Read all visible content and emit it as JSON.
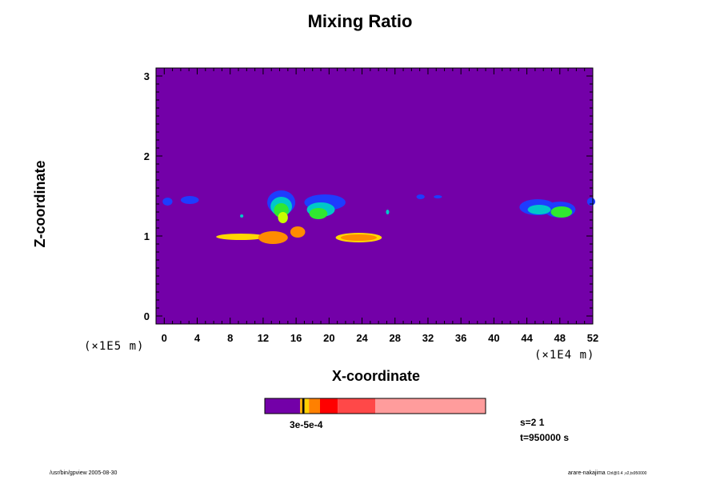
{
  "chart_data": {
    "type": "heatmap",
    "title": "Mixing Ratio",
    "xlabel": "X-coordinate",
    "ylabel": "Z-coordinate",
    "x_unit": "(×1E4 m)",
    "y_unit": "(×1E5 m)",
    "xlim": [
      -1,
      52
    ],
    "ylim": [
      -0.1,
      3.1
    ],
    "x_ticks": [
      "0",
      "4",
      "8",
      "12",
      "16",
      "20",
      "24",
      "28",
      "32",
      "36",
      "40",
      "44",
      "48",
      "52"
    ],
    "y_ticks": [
      "0",
      "1",
      "2",
      "3"
    ],
    "background_color": "#7300a8",
    "blobs": [
      {
        "x": 0.4,
        "z": 1.43,
        "rx": 0.6,
        "rz": 0.05,
        "color": "#1e3cff"
      },
      {
        "x": 3.1,
        "z": 1.45,
        "rx": 1.1,
        "rz": 0.05,
        "color": "#1e3cff"
      },
      {
        "x": 14.2,
        "z": 1.42,
        "rx": 1.7,
        "rz": 0.15,
        "color": "#1e3cff"
      },
      {
        "x": 14.2,
        "z": 1.37,
        "rx": 1.3,
        "rz": 0.12,
        "color": "#00c8c8"
      },
      {
        "x": 14.2,
        "z": 1.32,
        "rx": 0.9,
        "rz": 0.09,
        "color": "#30e830"
      },
      {
        "x": 14.4,
        "z": 1.23,
        "rx": 0.6,
        "rz": 0.07,
        "color": "#c8ff00"
      },
      {
        "x": 19.5,
        "z": 1.42,
        "rx": 2.5,
        "rz": 0.1,
        "color": "#1e3cff"
      },
      {
        "x": 19.0,
        "z": 1.33,
        "rx": 1.7,
        "rz": 0.09,
        "color": "#00c8c8"
      },
      {
        "x": 18.7,
        "z": 1.28,
        "rx": 1.1,
        "rz": 0.07,
        "color": "#30e830"
      },
      {
        "x": 9.3,
        "z": 0.99,
        "rx": 3.0,
        "rz": 0.04,
        "color": "#ffd700"
      },
      {
        "x": 13.2,
        "z": 0.98,
        "rx": 1.8,
        "rz": 0.08,
        "color": "#ff8c00"
      },
      {
        "x": 16.2,
        "z": 1.05,
        "rx": 0.9,
        "rz": 0.07,
        "color": "#ff8c00"
      },
      {
        "x": 23.6,
        "z": 0.98,
        "rx": 2.8,
        "rz": 0.06,
        "color": "#ffd700"
      },
      {
        "x": 23.6,
        "z": 0.98,
        "rx": 2.2,
        "rz": 0.04,
        "color": "#ff8c00"
      },
      {
        "x": 31.1,
        "z": 1.49,
        "rx": 0.5,
        "rz": 0.03,
        "color": "#1e3cff"
      },
      {
        "x": 33.2,
        "z": 1.49,
        "rx": 0.5,
        "rz": 0.02,
        "color": "#1e3cff"
      },
      {
        "x": 45.3,
        "z": 1.36,
        "rx": 2.2,
        "rz": 0.1,
        "color": "#1e3cff"
      },
      {
        "x": 48.0,
        "z": 1.33,
        "rx": 1.9,
        "rz": 0.1,
        "color": "#1e3cff"
      },
      {
        "x": 45.5,
        "z": 1.33,
        "rx": 1.4,
        "rz": 0.06,
        "color": "#00c8c8"
      },
      {
        "x": 48.2,
        "z": 1.3,
        "rx": 1.3,
        "rz": 0.07,
        "color": "#30e830"
      },
      {
        "x": 51.8,
        "z": 1.43,
        "rx": 0.5,
        "rz": 0.05,
        "color": "#1e3cff"
      },
      {
        "x": 9.4,
        "z": 1.25,
        "rx": 0.2,
        "rz": 0.02,
        "color": "#00c8c8"
      },
      {
        "x": 27.1,
        "z": 1.3,
        "rx": 0.2,
        "rz": 0.03,
        "color": "#00c8c8"
      }
    ],
    "colorbar": {
      "segments": [
        {
          "fraction": 0.16,
          "color": "#7300a8"
        },
        {
          "fraction": 0.01,
          "color": "#ffb000"
        },
        {
          "fraction": 0.01,
          "color": "#000000"
        },
        {
          "fraction": 0.02,
          "color": "#ffd000"
        },
        {
          "fraction": 0.05,
          "color": "#ff8000"
        },
        {
          "fraction": 0.08,
          "color": "#ff0000"
        },
        {
          "fraction": 0.17,
          "color": "#ff4848"
        },
        {
          "fraction": 0.5,
          "color": "#ff9c9c"
        }
      ],
      "label": "3e-5e-4"
    }
  },
  "info": {
    "s": "s=2 1",
    "t": "t=950000 s"
  },
  "footer": {
    "left": "/usr/bin/gpview 2005-08-30",
    "right": "arare-nakajima",
    "right_suffix": "Ctrl@0.4 ,v2,ts950000"
  }
}
